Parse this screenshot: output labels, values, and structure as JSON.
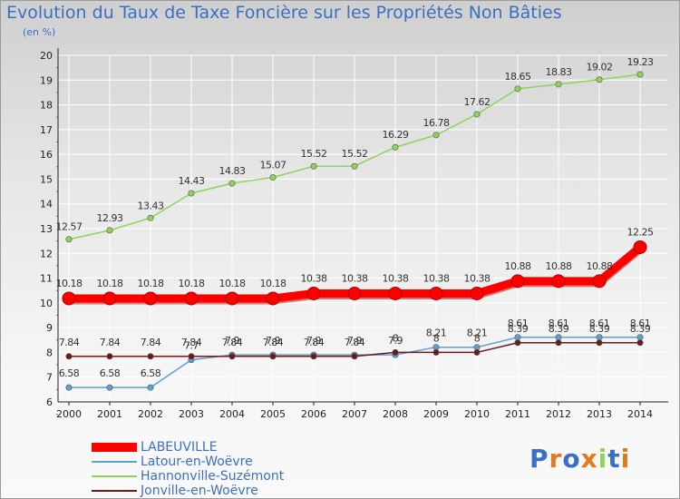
{
  "title": "Evolution du Taux de Taxe Foncière sur les Propriétés Non Bâties",
  "unit": "(en %)",
  "logo": "Proxiti",
  "colors": {
    "title": "#3a6fc4",
    "grid": "#ffffff",
    "axis": "#222222"
  },
  "chart_data": {
    "type": "line",
    "title": "Evolution du Taux de Taxe Foncière sur les Propriétés Non Bâties",
    "ylabel": "(en %)",
    "xlabel": "",
    "ylim": [
      6,
      20
    ],
    "yticks": [
      "6",
      "7",
      "8",
      "9",
      "10",
      "11",
      "12",
      "13",
      "14",
      "15",
      "16",
      "17",
      "18",
      "19",
      "20"
    ],
    "x": [
      "2000",
      "2001",
      "2002",
      "2003",
      "2004",
      "2005",
      "2006",
      "2007",
      "2008",
      "2009",
      "2010",
      "2011",
      "2012",
      "2013",
      "2014"
    ],
    "grid": true,
    "legend_position": "bottom-left",
    "series": [
      {
        "name": "LABEUVILLE",
        "color": "#ff0000",
        "values": [
          10.18,
          10.18,
          10.18,
          10.18,
          10.18,
          10.18,
          10.38,
          10.38,
          10.38,
          10.38,
          10.38,
          10.88,
          10.88,
          10.88,
          12.25
        ],
        "labels": [
          "10.18",
          "10.18",
          "10.18",
          "10.18",
          "10.18",
          "10.18",
          "10.38",
          "10.38",
          "10.38",
          "10.38",
          "10.38",
          "10.88",
          "10.88",
          "10.88",
          "12.25"
        ]
      },
      {
        "name": "Latour-en-Woëvre",
        "color": "#5fa0d0",
        "values": [
          6.58,
          6.58,
          6.58,
          7.7,
          7.9,
          7.9,
          7.9,
          7.9,
          7.9,
          8.21,
          8.21,
          8.61,
          8.61,
          8.61,
          8.61
        ],
        "labels": [
          "6.58",
          "6.58",
          "6.58",
          "7.7",
          "7.9",
          "7.9",
          "7.9",
          "7.9",
          "7.9",
          "8.21",
          "8.21",
          "8.61",
          "8.61",
          "8.61",
          "8.61"
        ]
      },
      {
        "name": "Hannonville-Suzémont",
        "color": "#8fd45a",
        "values": [
          12.57,
          12.93,
          13.43,
          14.43,
          14.83,
          15.07,
          15.52,
          15.52,
          16.29,
          16.78,
          17.62,
          18.65,
          18.83,
          19.02,
          19.23
        ],
        "labels": [
          "12.57",
          "12.93",
          "13.43",
          "14.43",
          "14.83",
          "15.07",
          "15.52",
          "15.52",
          "16.29",
          "16.78",
          "17.62",
          "18.65",
          "18.83",
          "19.02",
          "19.23"
        ]
      },
      {
        "name": "Jonville-en-Woëvre",
        "color": "#6b1a1a",
        "values": [
          7.84,
          7.84,
          7.84,
          7.84,
          7.84,
          7.84,
          7.84,
          7.84,
          8.0,
          8.0,
          8.0,
          8.39,
          8.39,
          8.39,
          8.39
        ],
        "labels": [
          "7.84",
          "7.84",
          "7.84",
          "7.84",
          "7.84",
          "7.84",
          "7.84",
          "7.84",
          "8",
          "8",
          "8",
          "8.39",
          "8.39",
          "8.39",
          "8.39"
        ]
      }
    ]
  }
}
